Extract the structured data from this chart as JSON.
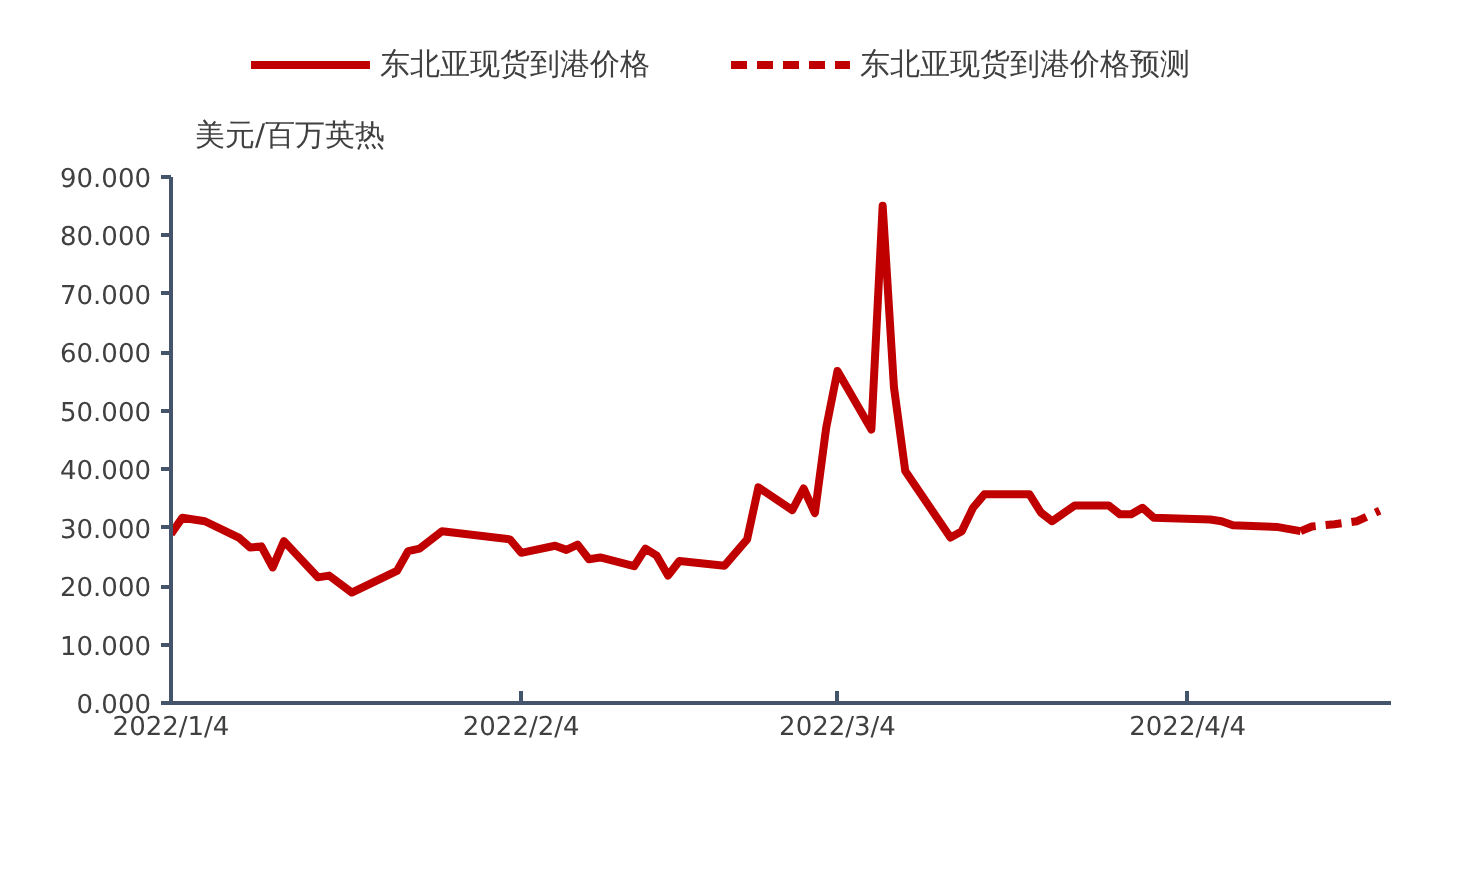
{
  "chart_data": {
    "type": "line",
    "ylabel": "美元/百万英热",
    "legend": "top",
    "grid": false,
    "xlim": [
      "2022-01-04",
      "2022-04-22"
    ],
    "xticks": [
      {
        "value": "2022-01-04",
        "label": "2022/1/4"
      },
      {
        "value": "2022-02-04",
        "label": "2022/2/4"
      },
      {
        "value": "2022-03-04",
        "label": "2022/3/4"
      },
      {
        "value": "2022-04-04",
        "label": "2022/4/4"
      }
    ],
    "ylim": [
      0,
      90
    ],
    "yticks": [
      {
        "value": 0,
        "label": "0.000"
      },
      {
        "value": 10,
        "label": "10.000"
      },
      {
        "value": 20,
        "label": "20.000"
      },
      {
        "value": 30,
        "label": "30.000"
      },
      {
        "value": 40,
        "label": "40.000"
      },
      {
        "value": 50,
        "label": "50.000"
      },
      {
        "value": 60,
        "label": "60.000"
      },
      {
        "value": 70,
        "label": "70.000"
      },
      {
        "value": 80,
        "label": "80.000"
      },
      {
        "value": 90,
        "label": "90.000"
      }
    ],
    "series": [
      {
        "name": "东北亚现货到港价格",
        "color": "#c00000",
        "line_style": "solid",
        "x": [
          "2022-01-04",
          "2022-01-05",
          "2022-01-07",
          "2022-01-10",
          "2022-01-11",
          "2022-01-12",
          "2022-01-13",
          "2022-01-14",
          "2022-01-17",
          "2022-01-18",
          "2022-01-20",
          "2022-01-24",
          "2022-01-25",
          "2022-01-26",
          "2022-01-28",
          "2022-02-03",
          "2022-02-04",
          "2022-02-07",
          "2022-02-08",
          "2022-02-09",
          "2022-02-10",
          "2022-02-11",
          "2022-02-14",
          "2022-02-15",
          "2022-02-16",
          "2022-02-17",
          "2022-02-18",
          "2022-02-22",
          "2022-02-24",
          "2022-02-25",
          "2022-02-28",
          "2022-03-01",
          "2022-03-02",
          "2022-03-03",
          "2022-03-04",
          "2022-03-07",
          "2022-03-08",
          "2022-03-09",
          "2022-03-10",
          "2022-03-14",
          "2022-03-15",
          "2022-03-16",
          "2022-03-17",
          "2022-03-21",
          "2022-03-22",
          "2022-03-23",
          "2022-03-25",
          "2022-03-28",
          "2022-03-29",
          "2022-03-30",
          "2022-03-31",
          "2022-04-01",
          "2022-04-06",
          "2022-04-07",
          "2022-04-08",
          "2022-04-12",
          "2022-04-14"
        ],
        "values": [
          28.9,
          31.7,
          31.1,
          28.3,
          26.6,
          26.8,
          23.2,
          27.7,
          21.5,
          21.8,
          18.9,
          22.6,
          26.0,
          26.4,
          29.4,
          28.0,
          25.7,
          26.9,
          26.2,
          27.1,
          24.6,
          24.9,
          23.4,
          26.4,
          25.2,
          21.8,
          24.3,
          23.5,
          28.0,
          36.9,
          33.0,
          36.7,
          32.5,
          47.1,
          56.8,
          46.8,
          85.1,
          54.0,
          39.7,
          28.3,
          29.4,
          33.4,
          35.7,
          35.7,
          32.6,
          31.1,
          33.8,
          33.8,
          32.3,
          32.3,
          33.4,
          31.7,
          31.4,
          31.1,
          30.4,
          30.1,
          29.4
        ]
      },
      {
        "name": "东北亚现货到港价格预测",
        "color": "#c00000",
        "line_style": "dashed",
        "x": [
          "2022-04-14",
          "2022-04-15",
          "2022-04-17",
          "2022-04-19",
          "2022-04-21"
        ],
        "values": [
          29.4,
          30.2,
          30.6,
          31.1,
          32.9
        ]
      }
    ]
  }
}
